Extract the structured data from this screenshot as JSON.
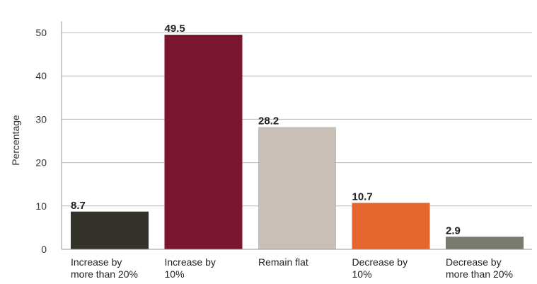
{
  "chart_data": {
    "type": "bar",
    "categories": [
      [
        "Increase by",
        "more than 20%"
      ],
      [
        "Increase by",
        "10%"
      ],
      [
        "Remain flat"
      ],
      [
        "Decrease by",
        "10%"
      ],
      [
        "Decrease by",
        "more than 20%"
      ]
    ],
    "values": [
      8.7,
      49.5,
      28.2,
      10.7,
      2.9
    ],
    "value_labels": [
      "8.7",
      "49.5",
      "28.2",
      "10.7",
      "2.9"
    ],
    "colors": [
      "#33332b",
      "#7a1530",
      "#c8c0b7",
      "#e5672f",
      "#787a6d"
    ],
    "title": "",
    "xlabel": "",
    "ylabel": "Percentage",
    "ylim": [
      0,
      50
    ],
    "yticks": [
      "0",
      "10",
      "20",
      "30",
      "40",
      "50"
    ],
    "grid": true,
    "legend": "none"
  }
}
